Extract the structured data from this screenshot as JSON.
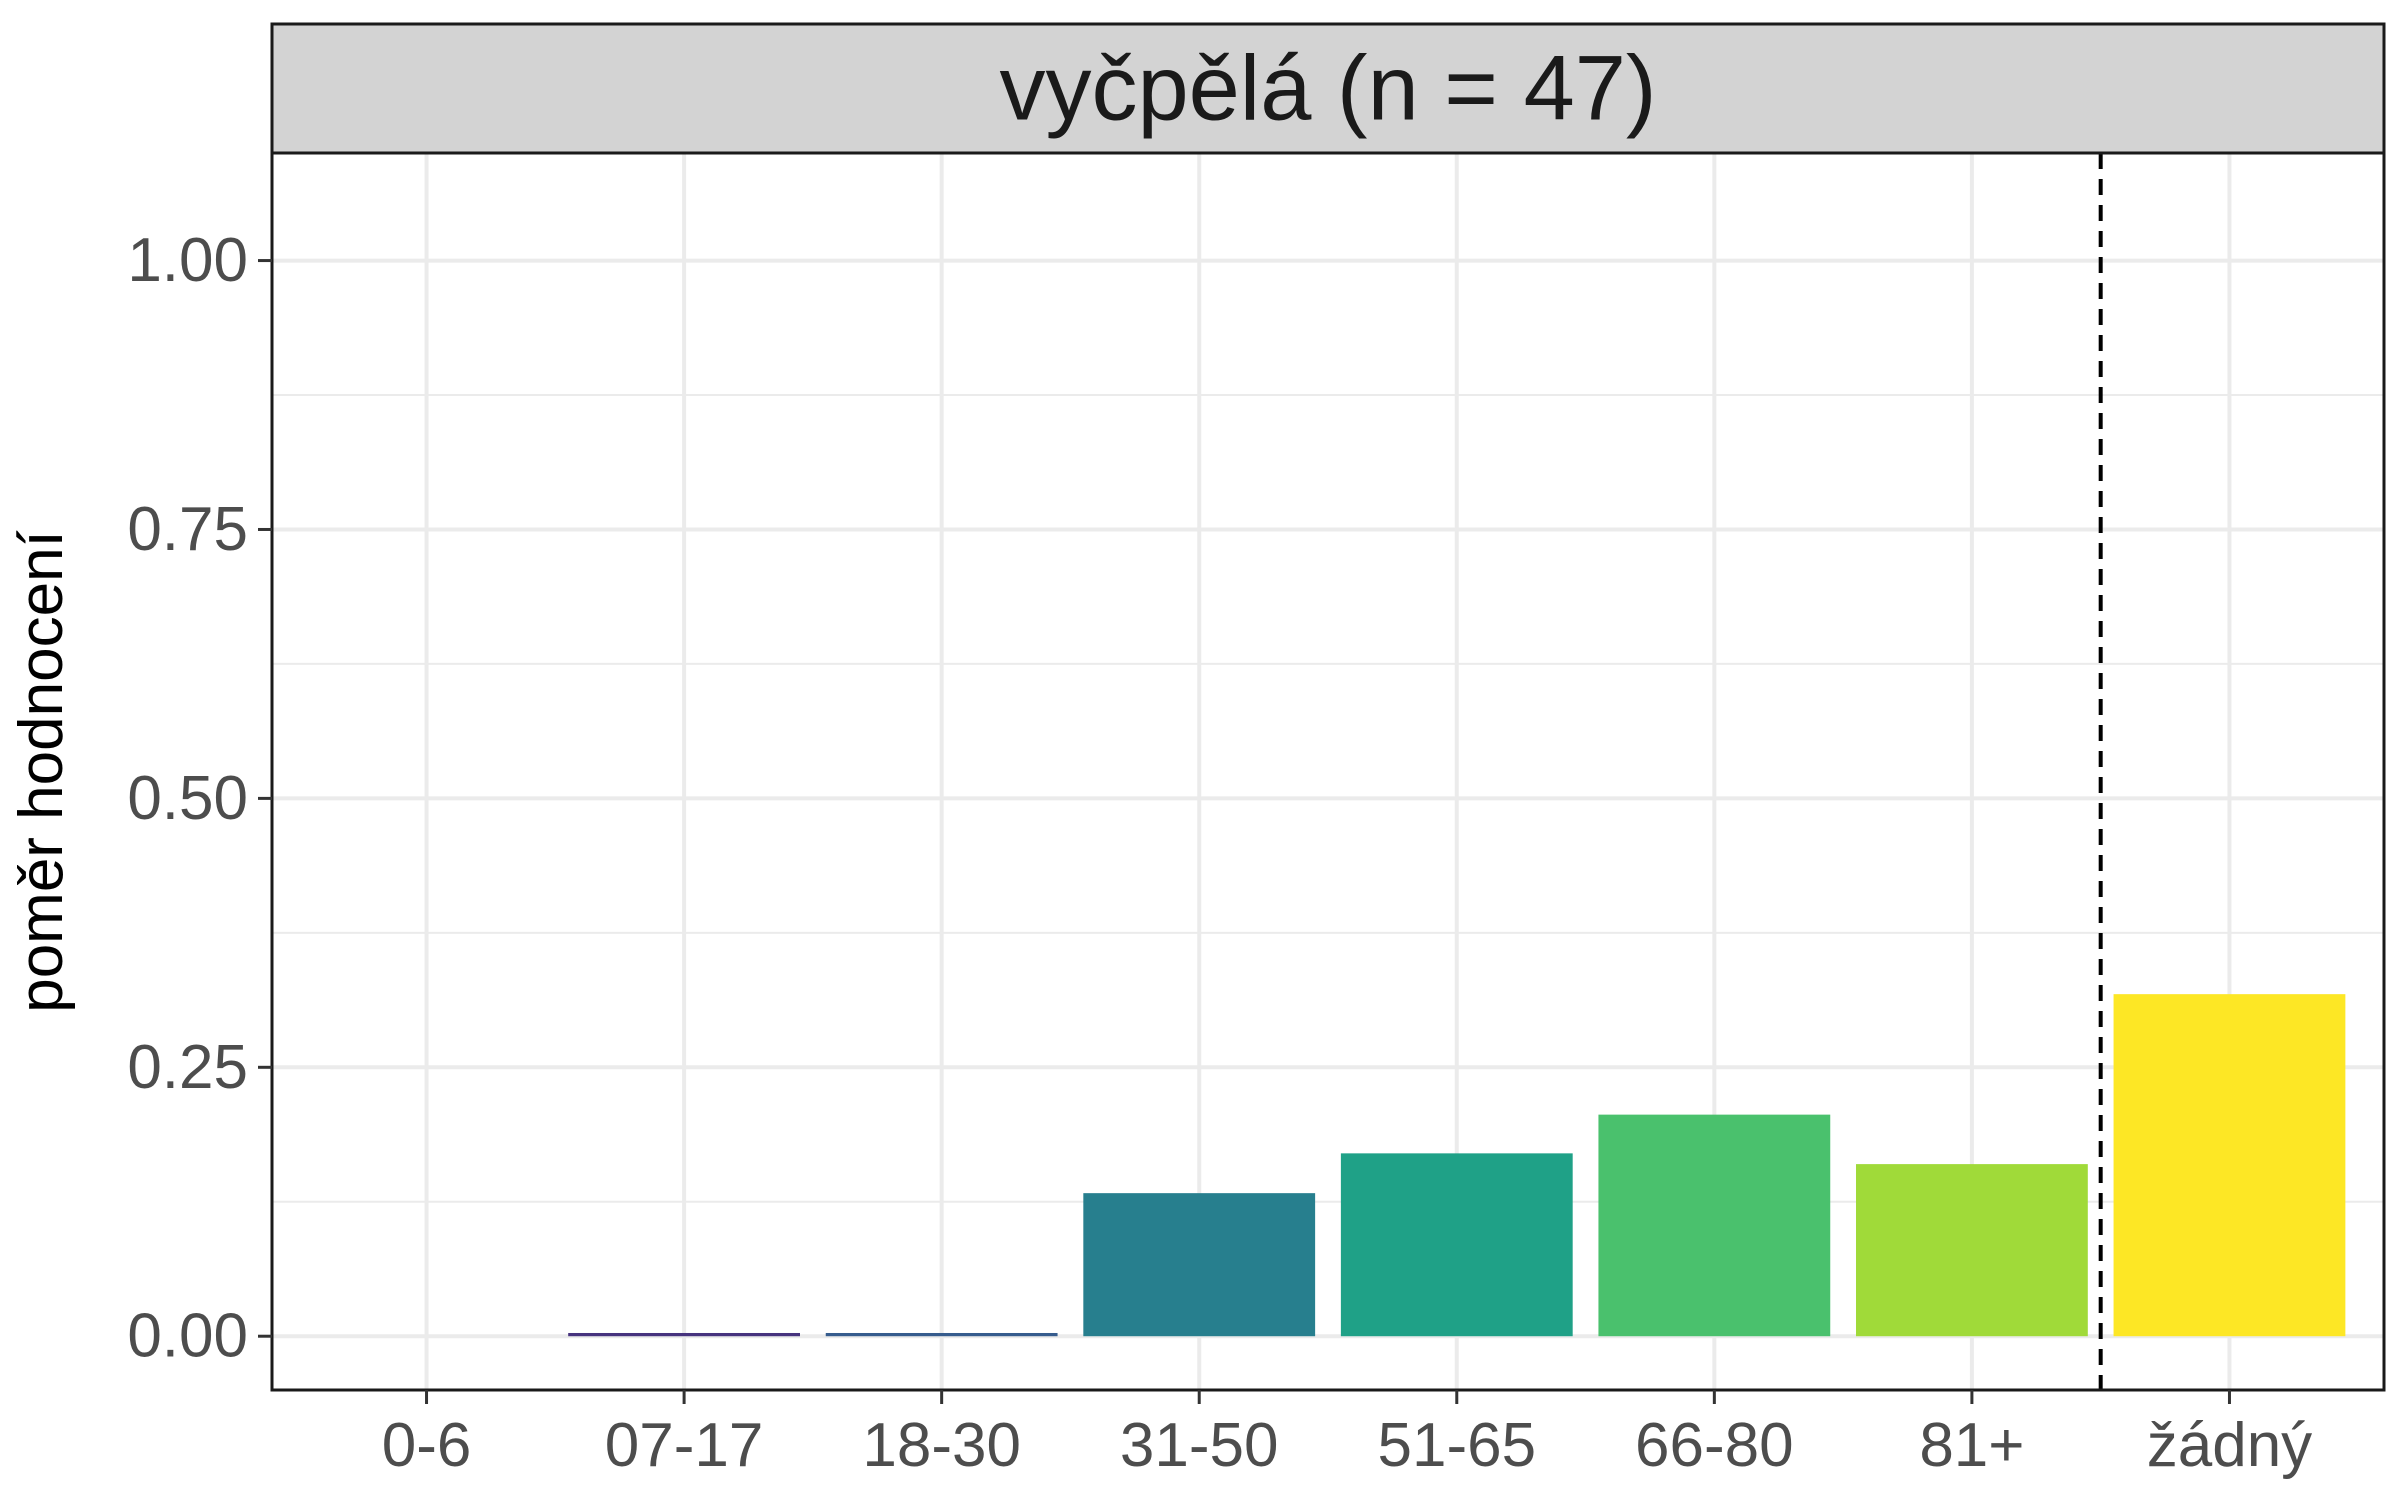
{
  "chart_data": {
    "type": "bar",
    "strip_title": "vyčpělá (n = 47)",
    "ylabel": "poměr hodnocení",
    "xlabel": "",
    "categories": [
      "0-6",
      "07-17",
      "18-30",
      "31-50",
      "51-65",
      "66-80",
      "81+",
      "žádný"
    ],
    "values": [
      0.0,
      0.003,
      0.003,
      0.133,
      0.17,
      0.206,
      0.16,
      0.318
    ],
    "colors": [
      "#440154",
      "#46337e",
      "#365c8d",
      "#277f8e",
      "#1fa187",
      "#4ac16d",
      "#a0da39",
      "#fde725"
    ],
    "ylim": [
      -0.05,
      1.1
    ],
    "yticks": [
      0.0,
      0.25,
      0.5,
      0.75,
      1.0
    ],
    "ytick_labels": [
      "0.00",
      "0.25",
      "0.50",
      "0.75",
      "1.00"
    ],
    "vline_after_category": "81+",
    "vline_style": "dashed",
    "grid": true,
    "strip_background": "#d3d3d3"
  }
}
